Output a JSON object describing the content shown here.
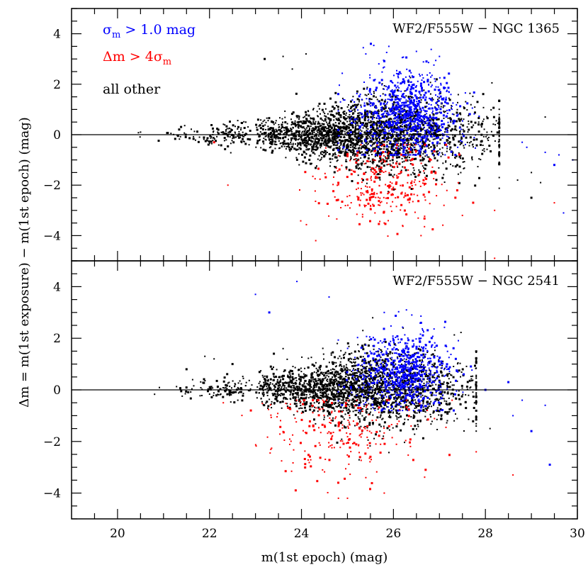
{
  "chart_data": [
    {
      "type": "scatter",
      "panel": "top",
      "title": "WF2/F555W − NGC 1365",
      "xlim": [
        19,
        30
      ],
      "ylim": [
        -5,
        5
      ],
      "xticks": [
        20,
        22,
        24,
        26,
        28,
        30
      ],
      "yticks": [
        -4,
        -2,
        0,
        2,
        4
      ],
      "ytick_labels": [
        "−4",
        "−2",
        "0",
        "2",
        "4"
      ],
      "zero_line": 0,
      "legend": {
        "position": "top-left",
        "entries": [
          {
            "sym": "σ",
            "sub": "m",
            "rest": " > 1.0 mag",
            "color": "#0000ff"
          },
          {
            "sym": "Δm > 4σ",
            "sub": "m",
            "rest": "",
            "color": "#ff0000"
          },
          {
            "sym": "all other",
            "sub": "",
            "rest": "",
            "color": "#000000"
          }
        ]
      },
      "series": [
        {
          "name": "all other",
          "color": "#000000",
          "generated": true,
          "model": {
            "count": 2600,
            "x_center": 25.3,
            "x_spread": 1.4,
            "x_min": 20.4,
            "x_max": 28.3,
            "width_a": 0.05,
            "width_b": 0.065,
            "width_k": 1.1,
            "bias": 0.0
          },
          "notable": [
            [
              20.5,
              0.1
            ],
            [
              23.2,
              3.0
            ],
            [
              23.6,
              3.1
            ],
            [
              23.8,
              2.6
            ],
            [
              24.1,
              3.2
            ],
            [
              29.0,
              -1.5
            ],
            [
              29.2,
              -1.9
            ],
            [
              29.0,
              -2.5
            ],
            [
              28.7,
              -1.8
            ],
            [
              29.3,
              0.7
            ]
          ]
        },
        {
          "name": "sigma_m > 1.0 mag",
          "color": "#0000ff",
          "generated": true,
          "model": {
            "count": 900,
            "x_center": 26.3,
            "x_spread": 0.55,
            "x_min": 24.8,
            "x_max": 28.0,
            "y_center": 0.8,
            "y_spread": 0.9,
            "y_min": -0.8,
            "y_max": 3.6
          },
          "notable": [
            [
              25.4,
              3.2
            ],
            [
              25.9,
              3.5
            ],
            [
              26.5,
              3.3
            ],
            [
              27.0,
              3.1
            ],
            [
              28.8,
              -0.3
            ],
            [
              28.9,
              -0.5
            ],
            [
              29.3,
              -0.7
            ],
            [
              29.5,
              -1.2
            ],
            [
              29.6,
              -0.8
            ],
            [
              29.9,
              -1.0
            ],
            [
              29.7,
              -3.1
            ]
          ]
        },
        {
          "name": "delta_m > 4 sigma_m",
          "color": "#ff0000",
          "generated": true,
          "model": {
            "count": 320,
            "x_center": 25.8,
            "x_spread": 0.7,
            "x_min": 21.5,
            "x_max": 28.2,
            "y_center": -1.9,
            "y_spread": 0.85,
            "y_min": -4.2,
            "y_max": -0.4
          },
          "notable": [
            [
              22.1,
              -0.3
            ],
            [
              22.4,
              -2.0
            ],
            [
              25.8,
              -3.5
            ],
            [
              26.2,
              -3.6
            ],
            [
              26.6,
              -4.0
            ],
            [
              27.5,
              -3.2
            ],
            [
              28.2,
              -3.0
            ],
            [
              29.5,
              -2.7
            ],
            [
              28.2,
              -4.9
            ]
          ]
        }
      ]
    },
    {
      "type": "scatter",
      "panel": "bottom",
      "title": "WF2/F555W − NGC 2541",
      "xlim": [
        19,
        30
      ],
      "ylim": [
        -5,
        5
      ],
      "xticks": [
        20,
        22,
        24,
        26,
        28,
        30
      ],
      "xtick_labels": [
        "20",
        "22",
        "24",
        "26",
        "28",
        "30"
      ],
      "yticks": [
        -4,
        -2,
        0,
        2,
        4
      ],
      "ytick_labels": [
        "−4",
        "−2",
        "0",
        "2",
        "4"
      ],
      "zero_line": 0,
      "series": [
        {
          "name": "all other",
          "color": "#000000",
          "generated": true,
          "model": {
            "count": 2300,
            "x_center": 25.2,
            "x_spread": 1.3,
            "x_min": 20.5,
            "x_max": 27.8,
            "width_a": 0.05,
            "width_b": 0.055,
            "width_k": 1.2,
            "bias": 0.05
          },
          "notable": [
            [
              21.9,
              1.3
            ],
            [
              22.1,
              1.2
            ],
            [
              21.5,
              0.8
            ],
            [
              22.5,
              1.0
            ],
            [
              23.4,
              1.4
            ],
            [
              23.6,
              1.6
            ],
            [
              28.1,
              -1.5
            ],
            [
              27.8,
              -1.6
            ]
          ]
        },
        {
          "name": "sigma_m > 1.0 mag",
          "color": "#0000ff",
          "generated": true,
          "model": {
            "count": 750,
            "x_center": 26.2,
            "x_spread": 0.5,
            "x_min": 24.8,
            "x_max": 27.8,
            "y_center": 0.7,
            "y_spread": 0.8,
            "y_min": -0.8,
            "y_max": 3.1
          },
          "notable": [
            [
              23.0,
              3.7
            ],
            [
              23.3,
              3.0
            ],
            [
              23.9,
              4.2
            ],
            [
              24.6,
              3.6
            ],
            [
              25.8,
              3.0
            ],
            [
              26.4,
              2.9
            ],
            [
              26.6,
              2.6
            ],
            [
              28.0,
              0.0
            ],
            [
              28.5,
              0.3
            ],
            [
              28.6,
              -1.0
            ],
            [
              29.0,
              -1.6
            ],
            [
              29.3,
              -0.6
            ],
            [
              29.4,
              -2.9
            ],
            [
              28.8,
              -0.4
            ]
          ]
        },
        {
          "name": "delta_m > 4 sigma_m",
          "color": "#ff0000",
          "generated": true,
          "model": {
            "count": 240,
            "x_center": 24.8,
            "x_spread": 0.9,
            "x_min": 21.6,
            "x_max": 27.8,
            "y_center": -1.7,
            "y_spread": 0.9,
            "y_min": -4.2,
            "y_max": -0.4
          },
          "notable": [
            [
              22.3,
              -0.5
            ],
            [
              22.9,
              -0.8
            ],
            [
              24.8,
              -3.6
            ],
            [
              25.0,
              -4.2
            ],
            [
              25.8,
              -4.0
            ],
            [
              26.7,
              -3.1
            ],
            [
              27.8,
              -2.4
            ],
            [
              28.6,
              -3.3
            ]
          ]
        }
      ]
    }
  ],
  "axes": {
    "xlabel": "m(1st epoch) (mag)",
    "ylabel": "Δm = m(1st exposure) − m(1st epoch) (mag)"
  }
}
